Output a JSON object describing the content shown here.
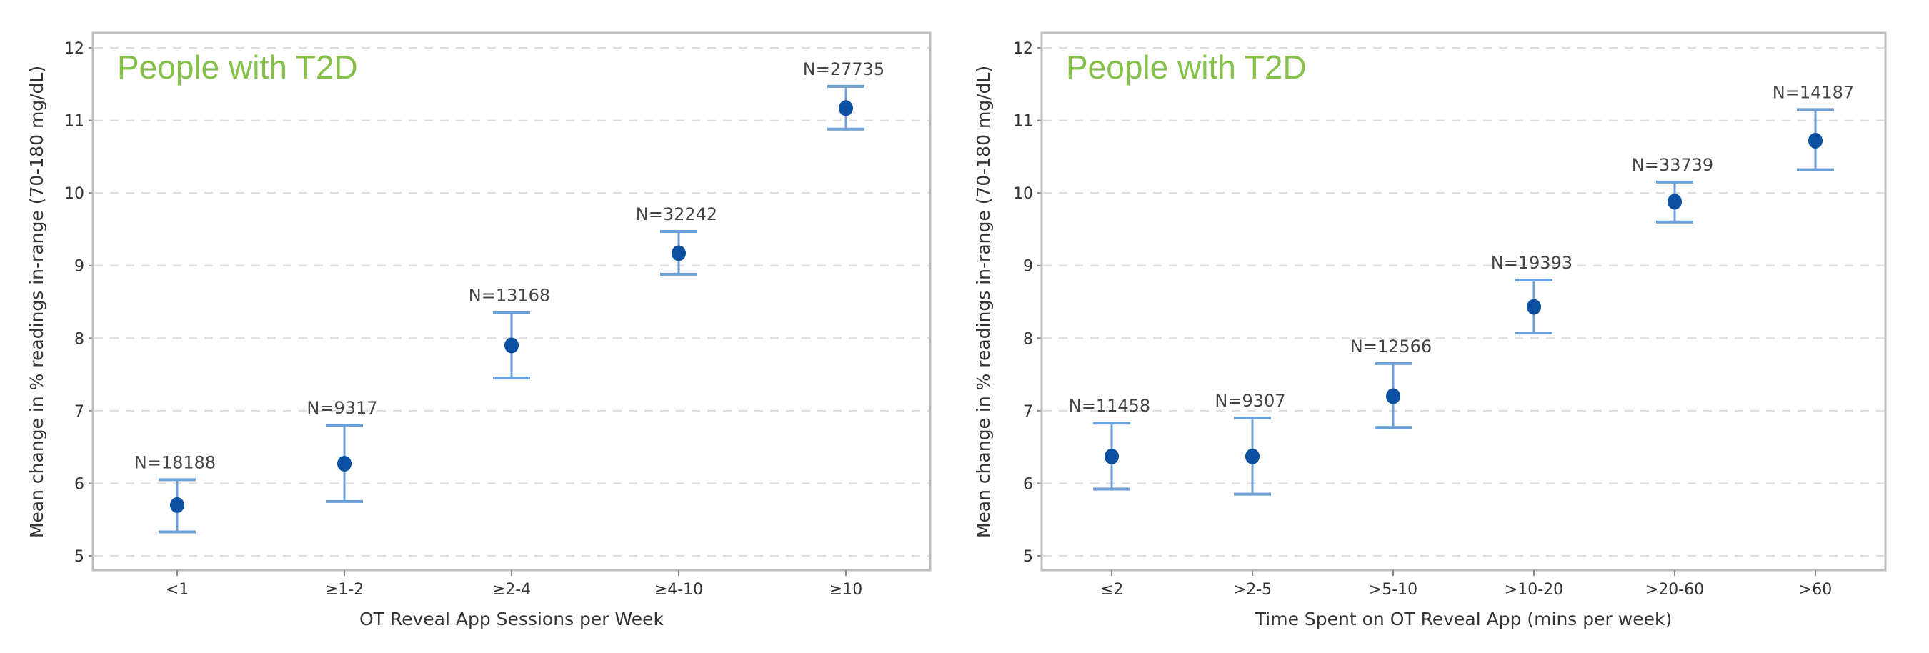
{
  "colors": {
    "point": "#0a4fa0",
    "errorbar": "#6b9fd6",
    "title": "#84c04a",
    "grid": "#dcdcdc",
    "frame": "#bdbdbd"
  },
  "chart_data": [
    {
      "type": "scatter",
      "title": "People with T2D",
      "xlabel": "OT Reveal App Sessions per Week",
      "ylabel": "Mean change in % readings in-range (70-180 mg/dL)",
      "ylim": [
        5,
        12
      ],
      "yticks": [
        "5",
        "6",
        "7",
        "8",
        "9",
        "10",
        "11",
        "12"
      ],
      "grid": "horizontal dashed",
      "categories": [
        "<1",
        "≥1-2",
        "≥2-4",
        "≥4-10",
        "≥10"
      ],
      "means": [
        5.7,
        6.27,
        7.9,
        9.17,
        11.17
      ],
      "ci_low": [
        5.33,
        5.75,
        7.45,
        8.88,
        10.88
      ],
      "ci_high": [
        6.05,
        6.8,
        8.35,
        9.47,
        11.47
      ],
      "n_labels": [
        "N=18188",
        "N=9317",
        "N=13168",
        "N=32242",
        "N=27735"
      ]
    },
    {
      "type": "scatter",
      "title": "People with T2D",
      "xlabel": "Time Spent on OT Reveal App (mins per week)",
      "ylabel": "Mean change in % readings in-range (70-180 mg/dL)",
      "ylim": [
        5,
        12
      ],
      "yticks": [
        "5",
        "6",
        "7",
        "8",
        "9",
        "10",
        "11",
        "12"
      ],
      "grid": "horizontal dashed",
      "categories": [
        "≤2",
        ">2-5",
        ">5-10",
        ">10-20",
        ">20-60",
        ">60"
      ],
      "means": [
        6.37,
        6.37,
        7.2,
        8.43,
        9.88,
        10.72
      ],
      "ci_low": [
        5.92,
        5.85,
        6.77,
        8.07,
        9.6,
        10.32
      ],
      "ci_high": [
        6.83,
        6.9,
        7.65,
        8.8,
        10.15,
        11.15
      ],
      "n_labels": [
        "N=11458",
        "N=9307",
        "N=12566",
        "N=19393",
        "N=33739",
        "N=14187"
      ]
    }
  ]
}
